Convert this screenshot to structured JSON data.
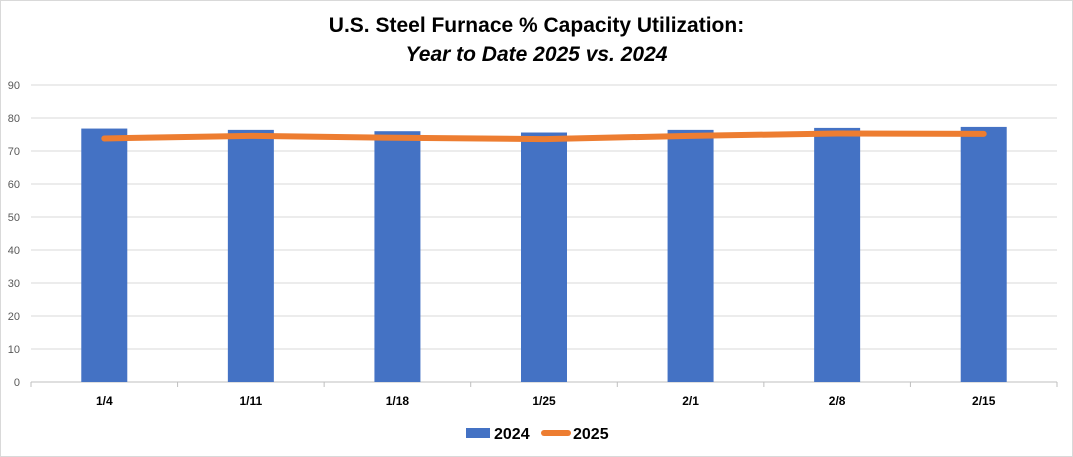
{
  "chart_data": {
    "type": "bar",
    "title": "U.S. Steel Furnace % Capacity Utilization:",
    "subtitle": "Year to Date 2025 vs. 2024",
    "categories": [
      "1/4",
      "1/11",
      "1/18",
      "1/25",
      "2/1",
      "2/8",
      "2/15"
    ],
    "series": [
      {
        "name": "2024",
        "kind": "bar",
        "color": "#4472c4",
        "values": [
          76.8,
          76.4,
          76.0,
          75.6,
          76.4,
          77.0,
          77.3
        ]
      },
      {
        "name": "2025",
        "kind": "line",
        "color": "#ed7d31",
        "values": [
          73.8,
          74.6,
          74.0,
          73.6,
          74.6,
          75.3,
          75.2
        ]
      }
    ],
    "ylim": [
      0,
      90
    ],
    "yticks": [
      0,
      10,
      20,
      30,
      40,
      50,
      60,
      70,
      80,
      90
    ],
    "grid": true,
    "legend": "bottom-center"
  }
}
